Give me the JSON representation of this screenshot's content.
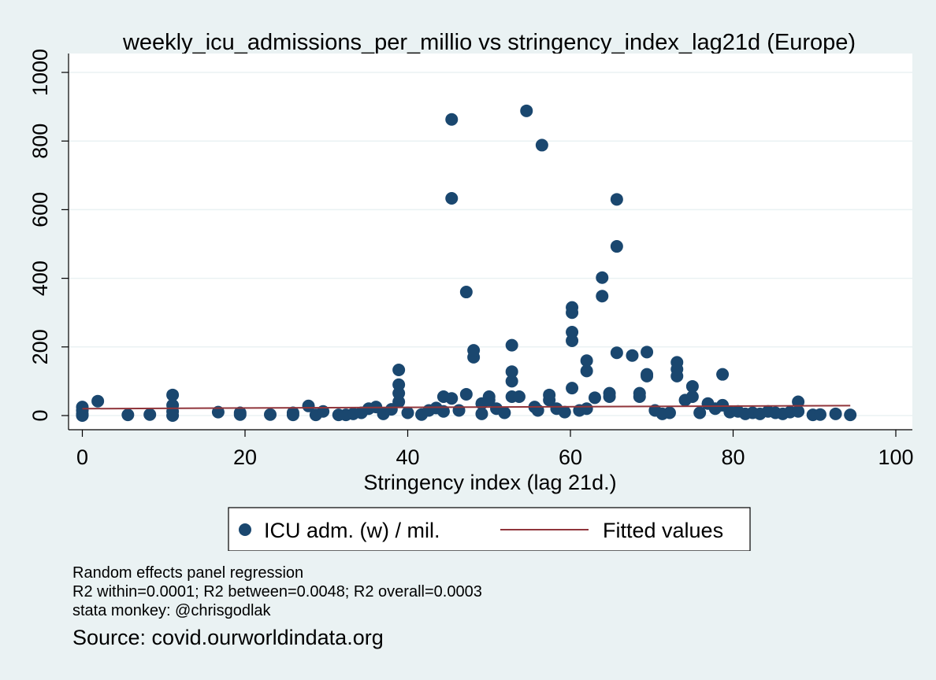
{
  "chart_data": {
    "type": "scatter",
    "title": "weekly_icu_admissions_per_millio vs stringency_index_lag21d (Europe)",
    "xlabel": "Stringency index (lag 21d.)",
    "ylabel": "",
    "xlim": [
      0,
      100
    ],
    "ylim": [
      0,
      1000
    ],
    "xticks": [
      0,
      20,
      40,
      60,
      80,
      100
    ],
    "yticks": [
      0,
      200,
      400,
      600,
      800,
      1000
    ],
    "grid": "horizontal",
    "legend_position": "bottom",
    "colors": {
      "scatter": "#1a476f",
      "fit": "#90353b",
      "background": "#eaf2f3",
      "plot_background": "#ffffff"
    },
    "series": [
      {
        "name": "ICU adm. (w) / mil.",
        "type": "scatter",
        "points": [
          [
            0,
            0
          ],
          [
            0,
            5
          ],
          [
            0,
            15
          ],
          [
            0,
            25
          ],
          [
            1.9,
            42
          ],
          [
            5.6,
            2
          ],
          [
            8.3,
            3
          ],
          [
            11.1,
            0
          ],
          [
            11.1,
            12
          ],
          [
            11.1,
            30
          ],
          [
            11.1,
            60
          ],
          [
            16.7,
            10
          ],
          [
            19.4,
            3
          ],
          [
            19.4,
            8
          ],
          [
            23.1,
            3
          ],
          [
            25.9,
            2
          ],
          [
            25.9,
            8
          ],
          [
            27.8,
            28
          ],
          [
            28.7,
            2
          ],
          [
            29.6,
            12
          ],
          [
            31.5,
            2
          ],
          [
            32.4,
            2
          ],
          [
            33.3,
            5
          ],
          [
            34.3,
            8
          ],
          [
            35.2,
            20
          ],
          [
            36.1,
            25
          ],
          [
            37.0,
            5
          ],
          [
            38.0,
            18
          ],
          [
            38.9,
            40
          ],
          [
            38.9,
            65
          ],
          [
            38.9,
            90
          ],
          [
            38.9,
            133
          ],
          [
            40.0,
            8
          ],
          [
            41.7,
            3
          ],
          [
            42.6,
            15
          ],
          [
            43.5,
            22
          ],
          [
            44.4,
            12
          ],
          [
            44.4,
            55
          ],
          [
            45.4,
            50
          ],
          [
            45.4,
            633
          ],
          [
            45.4,
            863
          ],
          [
            46.3,
            15
          ],
          [
            47.2,
            62
          ],
          [
            47.2,
            360
          ],
          [
            48.1,
            170
          ],
          [
            48.1,
            190
          ],
          [
            49.1,
            35
          ],
          [
            49.1,
            5
          ],
          [
            50.0,
            55
          ],
          [
            50.0,
            45
          ],
          [
            50.9,
            20
          ],
          [
            51.9,
            8
          ],
          [
            52.8,
            55
          ],
          [
            52.8,
            100
          ],
          [
            52.8,
            128
          ],
          [
            52.8,
            205
          ],
          [
            53.7,
            55
          ],
          [
            54.6,
            888
          ],
          [
            55.6,
            25
          ],
          [
            56.0,
            15
          ],
          [
            56.5,
            788
          ],
          [
            57.4,
            45
          ],
          [
            57.4,
            60
          ],
          [
            58.3,
            20
          ],
          [
            59.3,
            10
          ],
          [
            60.2,
            80
          ],
          [
            60.2,
            218
          ],
          [
            60.2,
            243
          ],
          [
            60.2,
            300
          ],
          [
            60.2,
            315
          ],
          [
            61.1,
            15
          ],
          [
            62.0,
            130
          ],
          [
            62.0,
            160
          ],
          [
            62.0,
            20
          ],
          [
            63.0,
            52
          ],
          [
            63.9,
            348
          ],
          [
            63.9,
            402
          ],
          [
            64.8,
            55
          ],
          [
            64.8,
            65
          ],
          [
            65.7,
            493
          ],
          [
            65.7,
            630
          ],
          [
            65.7,
            183
          ],
          [
            67.6,
            175
          ],
          [
            68.5,
            55
          ],
          [
            68.5,
            65
          ],
          [
            69.4,
            115
          ],
          [
            69.4,
            120
          ],
          [
            69.4,
            185
          ],
          [
            70.4,
            15
          ],
          [
            71.3,
            5
          ],
          [
            72.2,
            8
          ],
          [
            73.1,
            115
          ],
          [
            73.1,
            135
          ],
          [
            73.1,
            155
          ],
          [
            74.1,
            45
          ],
          [
            75.0,
            55
          ],
          [
            75.0,
            85
          ],
          [
            75.9,
            8
          ],
          [
            76.9,
            35
          ],
          [
            77.8,
            20
          ],
          [
            78.7,
            120
          ],
          [
            78.7,
            30
          ],
          [
            79.6,
            10
          ],
          [
            80.6,
            12
          ],
          [
            81.5,
            5
          ],
          [
            82.4,
            8
          ],
          [
            83.3,
            5
          ],
          [
            84.3,
            12
          ],
          [
            85.2,
            8
          ],
          [
            86.1,
            5
          ],
          [
            87.0,
            10
          ],
          [
            88.0,
            12
          ],
          [
            88.0,
            40
          ],
          [
            89.8,
            2
          ],
          [
            90.7,
            3
          ],
          [
            92.6,
            5
          ],
          [
            94.4,
            2
          ]
        ]
      },
      {
        "name": "Fitted values",
        "type": "line",
        "x": [
          0,
          94.4
        ],
        "y": [
          20,
          29
        ]
      }
    ]
  },
  "notes": {
    "line1": "Random effects panel regression",
    "line2": "R2 within=0.0001; R2 between=0.0048; R2 overall=0.0003",
    "line3": "stata monkey: @chrisgodlak"
  },
  "source": "Source: covid.ourworldindata.org"
}
